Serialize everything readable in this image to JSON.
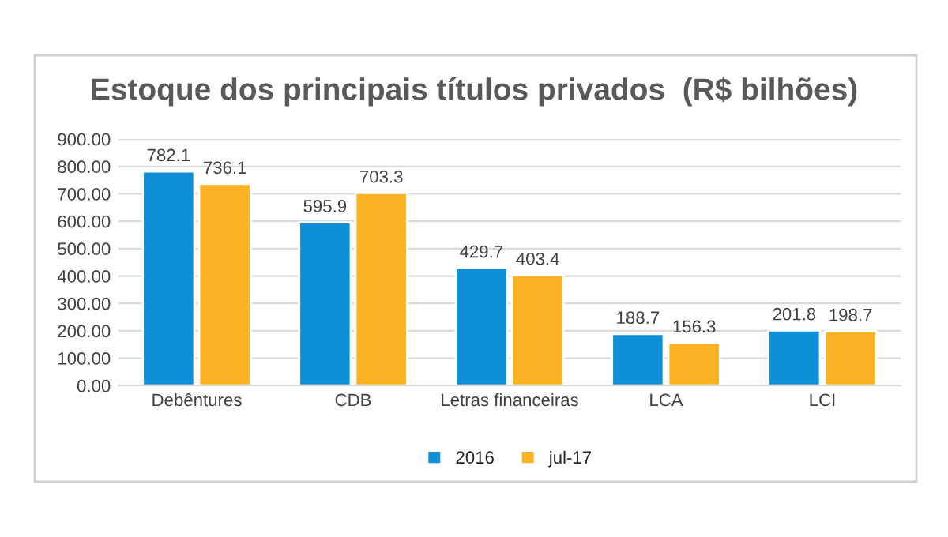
{
  "chart_data": {
    "type": "bar",
    "title": "Estoque dos principais títulos privados  (R$ bilhões)",
    "categories": [
      "Debêntures",
      "CDB",
      "Letras financeiras",
      "LCA",
      "LCI"
    ],
    "series": [
      {
        "name": "2016",
        "color": "#0f8fd6",
        "values": [
          782.1,
          595.9,
          429.7,
          188.7,
          201.8
        ]
      },
      {
        "name": "jul-17",
        "color": "#fbb224",
        "values": [
          736.1,
          703.3,
          403.4,
          156.3,
          198.7
        ]
      }
    ],
    "ylim": [
      0,
      900
    ],
    "yticks": [
      {
        "value": 0,
        "label": "0.00"
      },
      {
        "value": 100,
        "label": "100.00"
      },
      {
        "value": 200,
        "label": "200.00"
      },
      {
        "value": 300,
        "label": "300.00"
      },
      {
        "value": 400,
        "label": "400.00"
      },
      {
        "value": 500,
        "label": "500.00"
      },
      {
        "value": 600,
        "label": "600.00"
      },
      {
        "value": 700,
        "label": "700.00"
      },
      {
        "value": 800,
        "label": "800.00"
      },
      {
        "value": 900,
        "label": "900.00"
      }
    ],
    "grid": "y",
    "legend": "bottom",
    "data_labels": true
  }
}
